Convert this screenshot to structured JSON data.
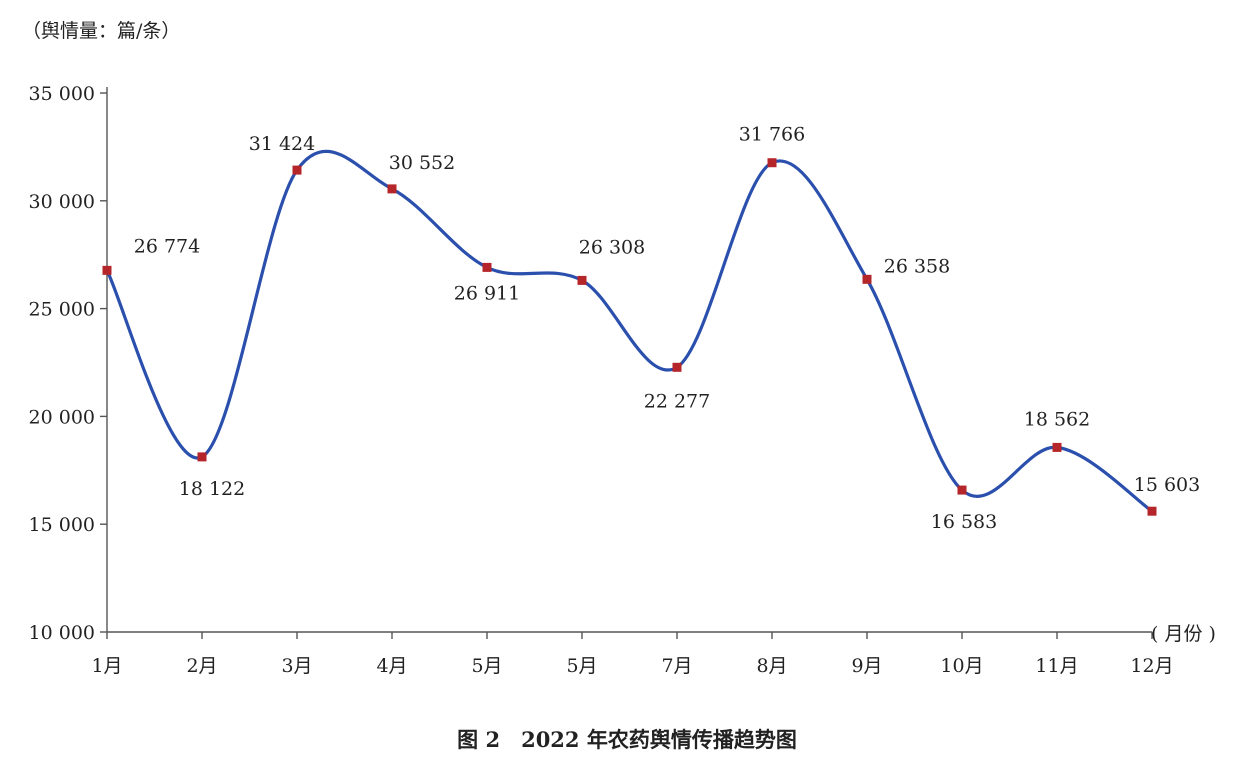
{
  "chart_data": {
    "type": "line",
    "title": "图 2　2022 年农药舆情传播趋势图",
    "ylabel": "（舆情量：篇/条）",
    "xlabel": "( 月份 )",
    "categories": [
      "1月",
      "2月",
      "3月",
      "4月",
      "5月",
      "5月",
      "7月",
      "8月",
      "9月",
      "10月",
      "11月",
      "12月"
    ],
    "series": [
      {
        "values": [
          26774,
          18122,
          31424,
          30552,
          26911,
          26308,
          22277,
          31766,
          26358,
          16583,
          18562,
          15603
        ],
        "value_labels": [
          "26 774",
          "18 122",
          "31 424",
          "30 552",
          "26 911",
          "26 308",
          "22 277",
          "31 766",
          "26 358",
          "16 583",
          "18 562",
          "15 603"
        ]
      }
    ],
    "yticks": [
      10000,
      15000,
      20000,
      25000,
      30000,
      35000
    ],
    "ytick_labels": [
      "10 000",
      "15 000",
      "20 000",
      "25 000",
      "30 000",
      "35 000"
    ],
    "ylim": [
      10000,
      35000
    ],
    "grid": false,
    "line_color": "#2a4fad",
    "marker_color": "#b5262a",
    "axis_color": "#555555"
  }
}
